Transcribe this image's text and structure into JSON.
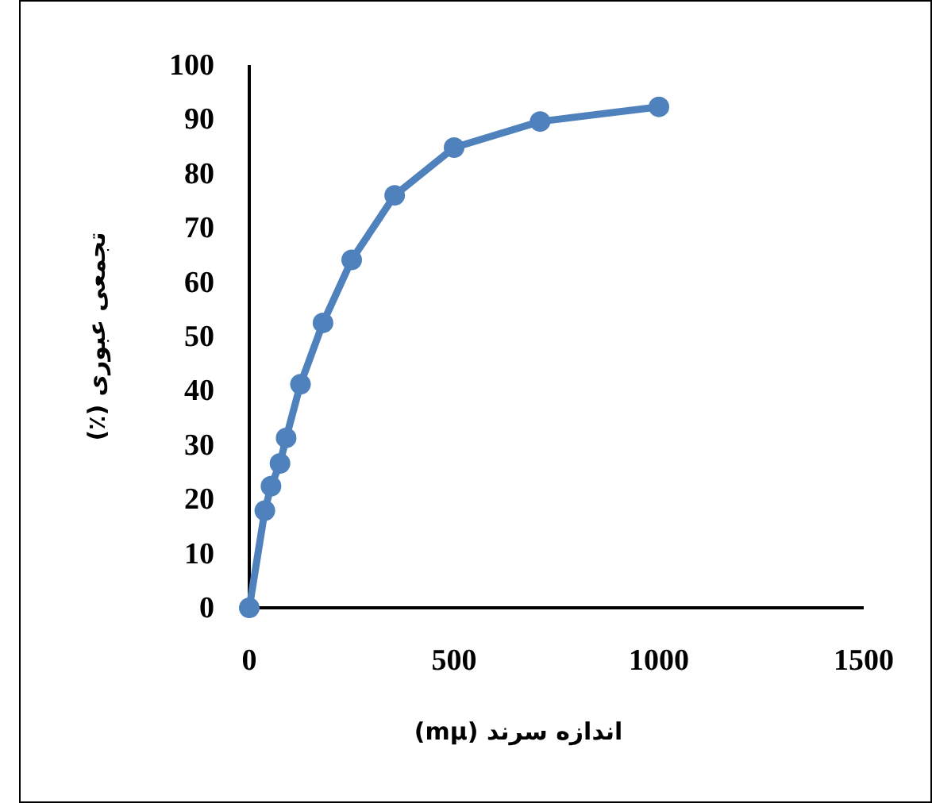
{
  "chart_data": {
    "type": "line",
    "xlabel": "اندازه سرند (mµ)",
    "ylabel": "تجمعی عبوری (٪)",
    "x": [
      0,
      38,
      53,
      75,
      90,
      125,
      180,
      250,
      355,
      500,
      710,
      1000
    ],
    "series": [
      {
        "color": "#4f81bd",
        "values": [
          0,
          17.9,
          22.4,
          26.6,
          31.3,
          41.2,
          52.5,
          64.1,
          76.0,
          84.8,
          89.6,
          92.3
        ]
      }
    ],
    "xlim": [
      0,
      1500
    ],
    "xticks": [
      0,
      500,
      1000,
      1500
    ],
    "ylim": [
      0,
      100
    ],
    "yticks": [
      0,
      10,
      20,
      30,
      40,
      50,
      60,
      70,
      80,
      90,
      100
    ],
    "marker": "circle",
    "line_style": "solid",
    "grid": false
  }
}
